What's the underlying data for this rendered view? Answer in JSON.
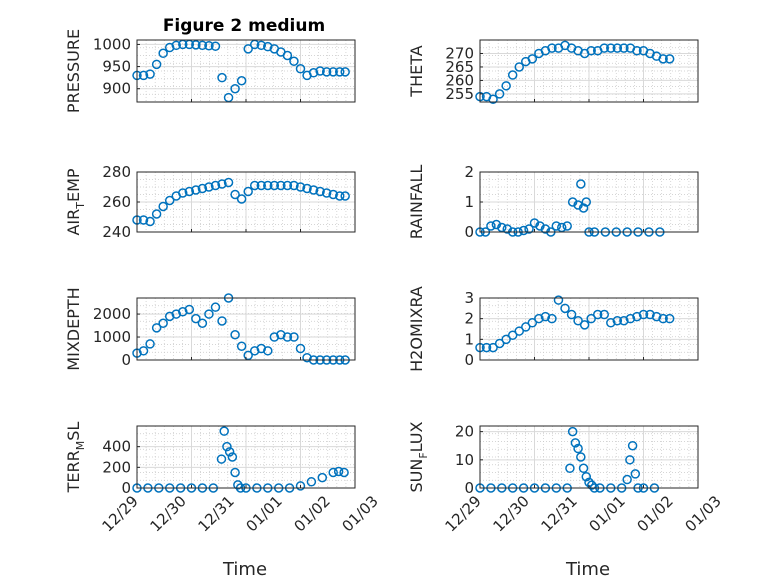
{
  "title": "Figure 2 medium",
  "colors": {
    "marker": "#0072bd",
    "axis": "#262626"
  },
  "x_tick_labels": [
    "12/29",
    "12/30",
    "12/31",
    "01/01",
    "01/02",
    "01/03"
  ],
  "xlabel": "Time",
  "chart_data": [
    {
      "type": "scatter",
      "ylabel": "PRESSURE",
      "ylim": [
        870,
        1010
      ],
      "yticks": [
        900,
        950,
        1000
      ],
      "xlim": [
        0,
        4
      ],
      "x": [
        0.0,
        0.12,
        0.24,
        0.36,
        0.48,
        0.6,
        0.72,
        0.84,
        0.96,
        1.08,
        1.2,
        1.32,
        1.44,
        1.56,
        1.68,
        1.8,
        1.92,
        2.04,
        2.16,
        2.28,
        2.4,
        2.52,
        2.64,
        2.76,
        2.88,
        3.0,
        3.12,
        3.24,
        3.36,
        3.48,
        3.6,
        3.72,
        3.82
      ],
      "y": [
        930,
        930,
        933,
        955,
        980,
        993,
        998,
        1000,
        1000,
        999,
        998,
        997,
        996,
        925,
        880,
        900,
        918,
        990,
        1000,
        998,
        995,
        990,
        983,
        975,
        962,
        945,
        930,
        936,
        940,
        938,
        938,
        938,
        938
      ]
    },
    {
      "type": "scatter",
      "ylabel": "THETA",
      "ylim": [
        252,
        275
      ],
      "yticks": [
        255,
        260,
        265,
        270
      ],
      "xlim": [
        0,
        4
      ],
      "x": [
        0.0,
        0.12,
        0.24,
        0.36,
        0.48,
        0.6,
        0.72,
        0.84,
        0.96,
        1.08,
        1.2,
        1.32,
        1.44,
        1.56,
        1.68,
        1.8,
        1.92,
        2.04,
        2.16,
        2.28,
        2.4,
        2.52,
        2.64,
        2.76,
        2.88,
        3.0,
        3.12,
        3.24,
        3.36,
        3.48
      ],
      "y": [
        254,
        254,
        253,
        255,
        258,
        262,
        265,
        267,
        268,
        270,
        271,
        272,
        272,
        273,
        272,
        271,
        270,
        271,
        271,
        272,
        272,
        272,
        272,
        272,
        271,
        271,
        270,
        269,
        268,
        268
      ]
    },
    {
      "type": "scatter",
      "ylabel": "AIR_TEMP",
      "ylim": [
        240,
        280
      ],
      "yticks": [
        240,
        260,
        280
      ],
      "xlim": [
        0,
        4
      ],
      "x": [
        0.0,
        0.12,
        0.24,
        0.36,
        0.48,
        0.6,
        0.72,
        0.84,
        0.96,
        1.08,
        1.2,
        1.32,
        1.44,
        1.56,
        1.68,
        1.8,
        1.92,
        2.04,
        2.16,
        2.28,
        2.4,
        2.52,
        2.64,
        2.76,
        2.88,
        3.0,
        3.12,
        3.24,
        3.36,
        3.48,
        3.6,
        3.72,
        3.82
      ],
      "y": [
        248,
        248,
        247,
        252,
        257,
        261,
        264,
        266,
        267,
        268,
        269,
        270,
        271,
        272,
        273,
        265,
        262,
        267,
        271,
        271,
        271,
        271,
        271,
        271,
        271,
        270,
        269,
        268,
        267,
        266,
        265,
        264,
        264
      ]
    },
    {
      "type": "scatter",
      "ylabel": "RAINFALL",
      "ylim": [
        0,
        2
      ],
      "yticks": [
        0,
        1,
        2
      ],
      "xlim": [
        0,
        4
      ],
      "x": [
        0.0,
        0.1,
        0.2,
        0.3,
        0.4,
        0.5,
        0.6,
        0.7,
        0.8,
        0.9,
        1.0,
        1.1,
        1.2,
        1.3,
        1.4,
        1.5,
        1.6,
        1.7,
        1.8,
        1.85,
        1.9,
        1.95,
        2.0,
        2.1,
        2.3,
        2.5,
        2.7,
        2.9,
        3.1,
        3.3
      ],
      "y": [
        0,
        0,
        0.2,
        0.25,
        0.15,
        0.1,
        0,
        0,
        0.05,
        0.1,
        0.3,
        0.2,
        0.1,
        0,
        0.2,
        0.15,
        0.2,
        1.0,
        0.9,
        1.6,
        0.8,
        1.0,
        0,
        0,
        0,
        0,
        0,
        0,
        0,
        0
      ]
    },
    {
      "type": "scatter",
      "ylabel": "MIXDEPTH",
      "ylim": [
        0,
        2700
      ],
      "yticks": [
        0,
        1000,
        2000
      ],
      "xlim": [
        0,
        4
      ],
      "x": [
        0.0,
        0.12,
        0.24,
        0.36,
        0.48,
        0.6,
        0.72,
        0.84,
        0.96,
        1.08,
        1.2,
        1.32,
        1.44,
        1.56,
        1.68,
        1.8,
        1.92,
        2.04,
        2.16,
        2.28,
        2.4,
        2.52,
        2.64,
        2.76,
        2.88,
        3.0,
        3.12,
        3.24,
        3.36,
        3.48,
        3.6,
        3.72,
        3.82
      ],
      "y": [
        300,
        400,
        700,
        1400,
        1600,
        1900,
        2000,
        2100,
        2200,
        1800,
        1600,
        2000,
        2300,
        1700,
        2700,
        1100,
        600,
        200,
        400,
        500,
        400,
        1000,
        1100,
        1000,
        1000,
        500,
        100,
        0,
        0,
        0,
        0,
        0,
        0
      ]
    },
    {
      "type": "scatter",
      "ylabel": "H2OMIXRA",
      "ylim": [
        0,
        3
      ],
      "yticks": [
        0,
        1,
        2,
        3
      ],
      "xlim": [
        0,
        4
      ],
      "x": [
        0.0,
        0.12,
        0.24,
        0.36,
        0.48,
        0.6,
        0.72,
        0.84,
        0.96,
        1.08,
        1.2,
        1.32,
        1.44,
        1.56,
        1.68,
        1.8,
        1.92,
        2.04,
        2.16,
        2.28,
        2.4,
        2.52,
        2.64,
        2.76,
        2.88,
        3.0,
        3.12,
        3.24,
        3.36,
        3.48
      ],
      "y": [
        0.6,
        0.6,
        0.6,
        0.8,
        1.0,
        1.2,
        1.4,
        1.6,
        1.8,
        2.0,
        2.1,
        2.0,
        2.9,
        2.5,
        2.2,
        1.9,
        1.7,
        2.0,
        2.2,
        2.2,
        1.8,
        1.9,
        1.9,
        2.0,
        2.1,
        2.2,
        2.2,
        2.1,
        2.0,
        2.0
      ]
    },
    {
      "type": "scatter",
      "ylabel": "TERR_MSL",
      "ylim": [
        0,
        600
      ],
      "yticks": [
        0,
        200,
        400
      ],
      "xlim": [
        0,
        4
      ],
      "x": [
        0.0,
        0.2,
        0.4,
        0.6,
        0.8,
        1.0,
        1.2,
        1.4,
        1.55,
        1.6,
        1.65,
        1.7,
        1.75,
        1.8,
        1.85,
        1.9,
        2.0,
        2.2,
        2.4,
        2.6,
        2.8,
        3.0,
        3.2,
        3.4,
        3.6,
        3.7,
        3.8
      ],
      "y": [
        0,
        0,
        0,
        0,
        0,
        0,
        0,
        0,
        280,
        550,
        400,
        350,
        300,
        150,
        30,
        0,
        0,
        0,
        0,
        0,
        0,
        20,
        60,
        100,
        150,
        160,
        150
      ]
    },
    {
      "type": "scatter",
      "ylabel": "SUN_FLUX",
      "ylim": [
        0,
        22
      ],
      "yticks": [
        0,
        10,
        20
      ],
      "xlim": [
        0,
        4
      ],
      "x": [
        0.0,
        0.2,
        0.4,
        0.6,
        0.8,
        1.0,
        1.2,
        1.4,
        1.6,
        1.65,
        1.7,
        1.75,
        1.8,
        1.85,
        1.9,
        1.95,
        2.0,
        2.05,
        2.1,
        2.2,
        2.4,
        2.6,
        2.7,
        2.75,
        2.8,
        2.85,
        2.9,
        3.0,
        3.2
      ],
      "y": [
        0,
        0,
        0,
        0,
        0,
        0,
        0,
        0,
        0,
        7,
        20,
        16,
        14,
        11,
        7,
        4,
        2,
        1,
        0,
        0,
        0,
        0,
        3,
        10,
        15,
        5,
        0,
        0,
        0
      ]
    }
  ]
}
